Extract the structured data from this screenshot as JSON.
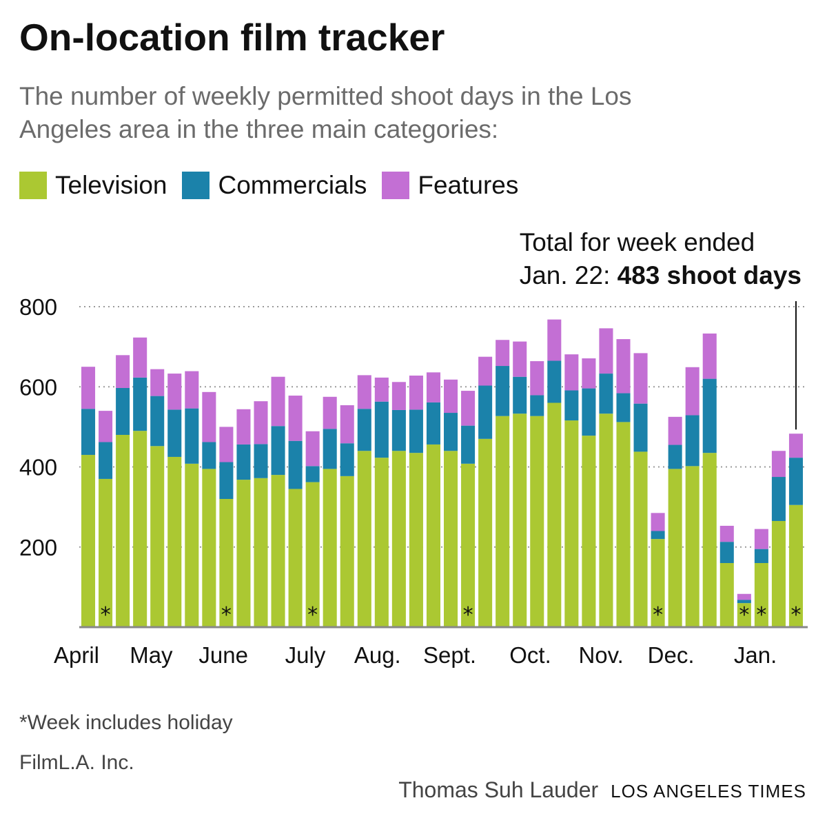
{
  "header": {
    "title": "On-location film tracker",
    "subtitle": "The number of weekly permitted shoot days in the Los Angeles area in the three main categories:"
  },
  "legend": [
    {
      "label": "Television",
      "color": "#abc832"
    },
    {
      "label": "Commercials",
      "color": "#1b82aa"
    },
    {
      "label": "Features",
      "color": "#c36fd4"
    }
  ],
  "annotation": {
    "line1": "Total for week ended",
    "line2_prefix": "Jan. 22: ",
    "line2_bold": "483 shoot days"
  },
  "footer": {
    "footnote": "*Week includes holiday",
    "source": "FilmL.A. Inc.",
    "author": "Thomas Suh Lauder",
    "brand": "LOS ANGELES TIMES"
  },
  "chart_data": {
    "type": "bar",
    "stacked": true,
    "ylim": [
      0,
      800
    ],
    "yticks": [
      200,
      400,
      600,
      800
    ],
    "grid": true,
    "month_labels": [
      {
        "label": "April",
        "week": 0
      },
      {
        "label": "May",
        "week": 4
      },
      {
        "label": "June",
        "week": 8
      },
      {
        "label": "July",
        "week": 13
      },
      {
        "label": "Aug.",
        "week": 17
      },
      {
        "label": "Sept.",
        "week": 21
      },
      {
        "label": "Oct.",
        "week": 26
      },
      {
        "label": "Nov.",
        "week": 30
      },
      {
        "label": "Dec.",
        "week": 34
      },
      {
        "label": "Jan.",
        "week": 39
      }
    ],
    "holiday_marker": "*",
    "holiday_weeks": [
      1,
      8,
      13,
      22,
      33,
      38,
      39,
      41
    ],
    "annotated_week": 41,
    "series": [
      {
        "name": "Television",
        "color": "#abc832",
        "values": [
          430,
          370,
          480,
          490,
          452,
          425,
          408,
          395,
          320,
          368,
          372,
          380,
          345,
          362,
          395,
          377,
          440,
          423,
          440,
          435,
          456,
          440,
          408,
          470,
          527,
          533,
          527,
          560,
          516,
          478,
          533,
          512,
          438,
          220,
          395,
          402,
          435,
          160,
          60,
          160,
          265,
          305
        ]
      },
      {
        "name": "Commercials",
        "color": "#1b82aa",
        "values": [
          115,
          92,
          117,
          133,
          125,
          118,
          138,
          67,
          92,
          88,
          85,
          122,
          120,
          40,
          100,
          82,
          105,
          140,
          102,
          108,
          105,
          95,
          95,
          133,
          125,
          92,
          52,
          105,
          75,
          118,
          100,
          72,
          120,
          20,
          60,
          127,
          185,
          53,
          8,
          35,
          110,
          118
        ]
      },
      {
        "name": "Features",
        "color": "#c36fd4",
        "values": [
          105,
          78,
          82,
          100,
          67,
          90,
          93,
          125,
          88,
          88,
          107,
          123,
          113,
          87,
          80,
          95,
          84,
          60,
          70,
          85,
          75,
          83,
          87,
          72,
          65,
          88,
          85,
          103,
          90,
          75,
          113,
          135,
          126,
          45,
          70,
          120,
          113,
          40,
          15,
          50,
          65,
          60
        ]
      }
    ]
  }
}
